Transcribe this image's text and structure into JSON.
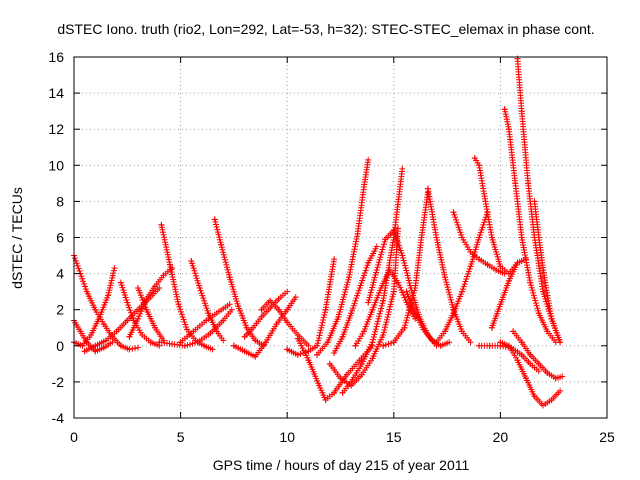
{
  "chart_data": {
    "type": "scatter",
    "title": "dSTEC Iono. truth (rio2, Lon=292, Lat=-53, h=32): STEC-STEC_elemax in phase cont.",
    "xlabel": "GPS time / hours of day 215 of year 2011",
    "ylabel": "dSTEC  / TECUs",
    "xlim": [
      0,
      25
    ],
    "ylim": [
      -4,
      16
    ],
    "xticks": [
      0,
      5,
      10,
      15,
      20,
      25
    ],
    "yticks": [
      -4,
      -2,
      0,
      2,
      4,
      6,
      8,
      10,
      12,
      14,
      16
    ],
    "grid": true,
    "marker": "+",
    "color": "#ff0000",
    "series": [
      {
        "x": [
          0.0,
          0.3,
          0.6,
          1.0,
          1.4,
          1.8,
          2.2,
          2.6,
          3.0
        ],
        "y": [
          5.0,
          4.0,
          3.0,
          2.0,
          1.2,
          0.5,
          0.0,
          -0.2,
          -0.1
        ]
      },
      {
        "x": [
          0.0,
          0.3,
          0.6,
          1.0,
          1.4,
          1.8
        ],
        "y": [
          1.4,
          0.8,
          0.2,
          -0.3,
          -0.1,
          0.2
        ]
      },
      {
        "x": [
          0.0,
          0.4,
          0.8,
          1.2,
          1.6,
          1.9
        ],
        "y": [
          0.2,
          0.0,
          0.6,
          1.6,
          2.8,
          4.3
        ]
      },
      {
        "x": [
          0.5,
          1.0,
          1.5,
          2.0,
          2.5,
          3.0,
          3.5,
          4.0
        ],
        "y": [
          -0.3,
          0.0,
          0.3,
          0.8,
          1.4,
          2.0,
          2.6,
          3.2
        ]
      },
      {
        "x": [
          2.2,
          2.5,
          2.8,
          3.2,
          3.6,
          4.0
        ],
        "y": [
          3.5,
          2.4,
          1.4,
          0.6,
          0.2,
          0.0
        ]
      },
      {
        "x": [
          2.6,
          3.0,
          3.4,
          3.8,
          4.2,
          4.6
        ],
        "y": [
          0.5,
          1.5,
          2.6,
          3.3,
          3.9,
          4.3
        ]
      },
      {
        "x": [
          3.0,
          3.4,
          3.8,
          4.2
        ],
        "y": [
          3.2,
          2.0,
          1.0,
          0.3
        ]
      },
      {
        "x": [
          4.1,
          4.5,
          4.9,
          5.3,
          5.7,
          6.1,
          6.5
        ],
        "y": [
          6.7,
          4.5,
          2.3,
          0.9,
          0.3,
          0.0,
          -0.2
        ]
      },
      {
        "x": [
          4.0,
          4.6,
          5.2,
          5.8,
          6.4,
          7.0,
          7.4
        ],
        "y": [
          0.2,
          0.1,
          0.0,
          0.2,
          0.7,
          1.4,
          2.0
        ]
      },
      {
        "x": [
          5.5,
          5.9,
          6.3,
          6.7,
          7.0
        ],
        "y": [
          4.7,
          3.2,
          1.8,
          0.8,
          0.3
        ]
      },
      {
        "x": [
          6.6,
          6.9,
          7.3,
          7.7,
          8.1,
          8.5,
          8.9
        ],
        "y": [
          7.0,
          5.6,
          3.8,
          2.2,
          1.0,
          0.3,
          0.0
        ]
      },
      {
        "x": [
          5.0,
          5.6,
          6.2,
          6.8,
          7.3
        ],
        "y": [
          0.2,
          0.8,
          1.4,
          1.9,
          2.3
        ]
      },
      {
        "x": [
          7.5,
          8.0,
          8.5,
          9.0,
          9.5,
          10.0,
          10.4
        ],
        "y": [
          0.0,
          -0.3,
          -0.6,
          0.2,
          1.2,
          2.0,
          2.7
        ]
      },
      {
        "x": [
          8.8,
          9.2,
          9.6,
          10.0,
          10.5,
          11.0
        ],
        "y": [
          2.0,
          2.5,
          2.0,
          1.3,
          0.6,
          0.0
        ]
      },
      {
        "x": [
          8.0,
          8.4,
          8.8,
          9.2,
          9.6,
          10.0
        ],
        "y": [
          0.5,
          1.0,
          1.6,
          2.1,
          2.6,
          3.0
        ]
      },
      {
        "x": [
          10.0,
          10.5,
          11.0,
          11.4,
          11.8,
          12.2
        ],
        "y": [
          -0.2,
          -0.5,
          -0.3,
          0.0,
          2.0,
          4.8
        ]
      },
      {
        "x": [
          10.5,
          11.0,
          11.5,
          11.8,
          12.2,
          12.8,
          13.4,
          14.0
        ],
        "y": [
          0.4,
          -0.8,
          -2.2,
          -3.0,
          -2.6,
          -1.6,
          -0.8,
          0.0
        ]
      },
      {
        "x": [
          11.4,
          11.9,
          12.4,
          12.9,
          13.3,
          13.6,
          13.8
        ],
        "y": [
          -0.5,
          0.2,
          1.6,
          3.8,
          6.2,
          8.8,
          10.3
        ]
      },
      {
        "x": [
          12.2,
          12.6,
          13.0,
          13.4,
          13.8,
          14.2
        ],
        "y": [
          -0.4,
          0.5,
          1.8,
          3.2,
          4.6,
          5.5
        ]
      },
      {
        "x": [
          12.0,
          12.5,
          13.0,
          13.5,
          14.0,
          14.5,
          15.0,
          15.2
        ],
        "y": [
          -1.0,
          -1.8,
          -2.2,
          -1.6,
          -0.7,
          0.6,
          3.0,
          6.5
        ]
      },
      {
        "x": [
          12.6,
          13.0,
          13.5,
          14.0,
          14.5,
          15.0,
          15.4
        ],
        "y": [
          -2.6,
          -2.0,
          -1.0,
          0.2,
          2.5,
          6.0,
          9.8
        ]
      },
      {
        "x": [
          13.8,
          14.2,
          14.6,
          15.0,
          15.4,
          15.8,
          16.2,
          16.6,
          17.0
        ],
        "y": [
          2.4,
          4.2,
          5.9,
          6.4,
          5.0,
          3.2,
          1.6,
          0.6,
          0.0
        ]
      },
      {
        "x": [
          13.2,
          13.6,
          14.0,
          14.4,
          14.8,
          15.2,
          15.6,
          16.0
        ],
        "y": [
          0.0,
          0.8,
          2.0,
          3.2,
          4.2,
          3.5,
          2.4,
          1.5
        ]
      },
      {
        "x": [
          14.5,
          15.0,
          15.5,
          16.0,
          16.3,
          16.6
        ],
        "y": [
          0.0,
          0.2,
          1.0,
          3.2,
          6.0,
          8.5
        ]
      },
      {
        "x": [
          16.6,
          17.0,
          17.4,
          17.8,
          18.2,
          18.6
        ],
        "y": [
          8.7,
          6.0,
          3.8,
          2.0,
          0.8,
          0.2
        ]
      },
      {
        "x": [
          15.6,
          16.0,
          16.4,
          16.8,
          17.2,
          17.6
        ],
        "y": [
          3.0,
          1.8,
          0.9,
          0.3,
          0.0,
          0.2
        ]
      },
      {
        "x": [
          17.0,
          17.4,
          17.8,
          18.2,
          18.6,
          19.0,
          19.4
        ],
        "y": [
          0.2,
          0.8,
          1.8,
          3.0,
          4.4,
          6.0,
          7.4
        ]
      },
      {
        "x": [
          17.8,
          18.2,
          18.6,
          19.0,
          19.4,
          19.8,
          20.2
        ],
        "y": [
          7.4,
          6.0,
          5.2,
          4.8,
          4.5,
          4.2,
          4.0
        ]
      },
      {
        "x": [
          18.8,
          19.0,
          19.3,
          19.6,
          20.0,
          20.4,
          20.8
        ],
        "y": [
          10.4,
          10.0,
          8.0,
          6.0,
          4.4,
          4.0,
          4.6
        ]
      },
      {
        "x": [
          19.0,
          19.5,
          20.0,
          20.5,
          21.0,
          21.4,
          21.8
        ],
        "y": [
          0.0,
          0.0,
          0.0,
          -0.1,
          -0.5,
          -1.0,
          -1.4
        ]
      },
      {
        "x": [
          20.2,
          20.4,
          20.7,
          21.0,
          21.4,
          21.8,
          22.2,
          22.6
        ],
        "y": [
          13.1,
          12.0,
          9.0,
          6.0,
          3.5,
          1.8,
          0.8,
          0.2
        ]
      },
      {
        "x": [
          20.8,
          21.0,
          21.3,
          21.6,
          22.0,
          22.4,
          22.8
        ],
        "y": [
          15.9,
          13.0,
          9.0,
          6.0,
          3.0,
          1.5,
          0.2
        ]
      },
      {
        "x": [
          21.6,
          21.8,
          22.1,
          22.4,
          22.8
        ],
        "y": [
          8.0,
          6.0,
          3.5,
          1.5,
          0.2
        ]
      },
      {
        "x": [
          20.0,
          20.4,
          20.8,
          21.2,
          21.6,
          22.0,
          22.4,
          22.8
        ],
        "y": [
          0.2,
          0.0,
          -0.8,
          -1.8,
          -2.8,
          -3.3,
          -3.0,
          -2.5
        ]
      },
      {
        "x": [
          20.6,
          21.0,
          21.4,
          21.8,
          22.2,
          22.6,
          22.9
        ],
        "y": [
          0.8,
          0.2,
          -0.5,
          -1.0,
          -1.5,
          -1.8,
          -1.7
        ]
      },
      {
        "x": [
          19.6,
          20.0,
          20.4,
          20.8,
          21.2
        ],
        "y": [
          1.0,
          2.3,
          3.6,
          4.6,
          4.8
        ]
      }
    ]
  }
}
